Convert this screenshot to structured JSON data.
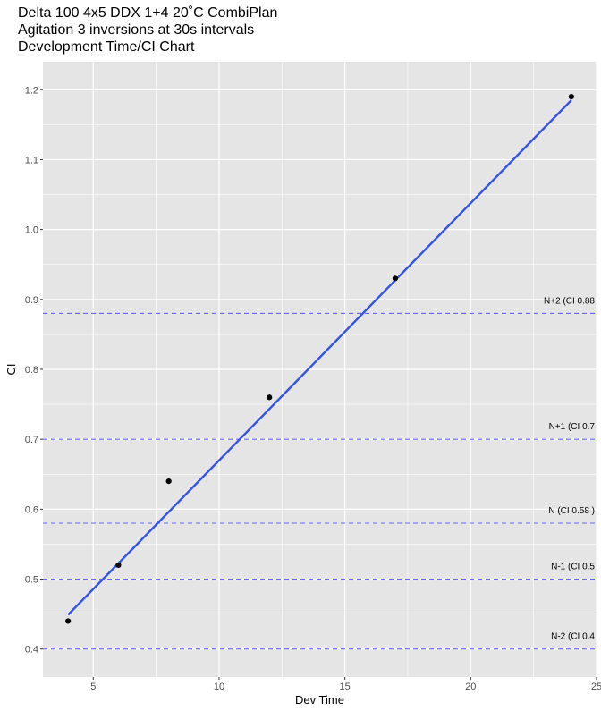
{
  "chart_data": {
    "type": "scatter",
    "title_lines": [
      "Delta 100 4x5 DDX 1+4 20˚C CombiPlan",
      "Agitation 3 inversions at 30s intervals",
      "Development Time/CI Chart"
    ],
    "xlabel": "Dev Time",
    "ylabel": "CI",
    "xlim": [
      3,
      25
    ],
    "ylim": [
      0.36,
      1.24
    ],
    "x_ticks": [
      5,
      10,
      15,
      20,
      25
    ],
    "y_ticks": [
      0.4,
      0.5,
      0.6,
      0.7,
      0.8,
      0.9,
      1.0,
      1.1,
      1.2
    ],
    "x_tick_labels": [
      "5",
      "10",
      "15",
      "20",
      "25"
    ],
    "y_tick_labels": [
      "0.4",
      "0.5",
      "0.6",
      "0.7",
      "0.8",
      "0.9",
      "1.0",
      "1.1",
      "1.2"
    ],
    "grid": true,
    "points": [
      {
        "x": 4,
        "y": 0.44
      },
      {
        "x": 6,
        "y": 0.52
      },
      {
        "x": 8,
        "y": 0.64
      },
      {
        "x": 12,
        "y": 0.76
      },
      {
        "x": 17,
        "y": 0.93
      },
      {
        "x": 24,
        "y": 1.19
      }
    ],
    "fit_line": {
      "x": [
        4,
        24
      ],
      "y": [
        0.449,
        1.185
      ]
    },
    "reference_lines": [
      {
        "y": 0.88,
        "label": "N+2 (CI 0.88"
      },
      {
        "y": 0.7,
        "label": "N+1 (CI 0.7"
      },
      {
        "y": 0.58,
        "label": "N (CI 0.58 )"
      },
      {
        "y": 0.5,
        "label": "N-1 (CI 0.5"
      },
      {
        "y": 0.4,
        "label": "N-2 (CI 0.4"
      }
    ],
    "colors": {
      "panel": "#e5e5e5",
      "grid": "#ffffff",
      "points": "#000000",
      "fit_line": "#3352e6",
      "reference_lines": "#6666ff"
    }
  }
}
